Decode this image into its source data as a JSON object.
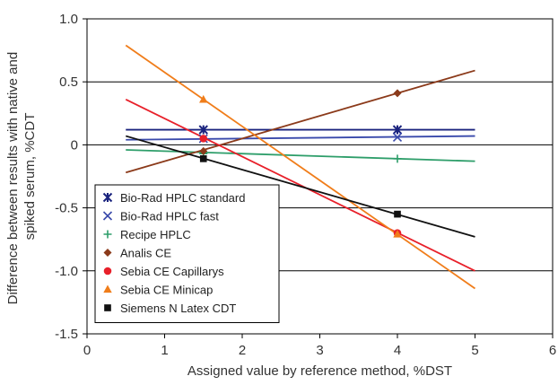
{
  "chart_data": {
    "type": "line",
    "title": "",
    "xlabel": "Assigned value by reference method, %DST",
    "ylabel_lines": [
      "Difference between results with native and",
      "spiked serum, %CDT"
    ],
    "xlim": [
      0,
      6
    ],
    "ylim": [
      -1.5,
      1.0
    ],
    "x_ticks": [
      "0",
      "1",
      "2",
      "3",
      "4",
      "5",
      "6"
    ],
    "y_ticks": [
      "1.0",
      "0.5",
      "0",
      "-0.5",
      "-1.0",
      "-1.5"
    ],
    "x_tick_values": [
      0,
      1,
      2,
      3,
      4,
      5,
      6
    ],
    "y_tick_values": [
      1.0,
      0.5,
      0,
      -0.5,
      -1.0,
      -1.5
    ],
    "gridlines_y": [
      1.0,
      0.5,
      0,
      -0.5,
      -1.0
    ],
    "grid": "horizontal",
    "legend_position": "bottom-left",
    "series": [
      {
        "name": "Bio-Rad HPLC standard",
        "marker": "asterisk",
        "color": "#1a237e",
        "points": [
          [
            1.5,
            0.12
          ],
          [
            4.0,
            0.12
          ]
        ],
        "fit": [
          [
            0.5,
            0.12
          ],
          [
            5.0,
            0.12
          ]
        ]
      },
      {
        "name": "Bio-Rad HPLC fast",
        "marker": "x",
        "color": "#3949ab",
        "points": [
          [
            1.5,
            0.05
          ],
          [
            4.0,
            0.06
          ]
        ],
        "fit": [
          [
            0.5,
            0.04
          ],
          [
            5.0,
            0.07
          ]
        ]
      },
      {
        "name": "Recipe HPLC",
        "marker": "plus",
        "color": "#2e9e6a",
        "points": [
          [
            1.5,
            -0.07
          ],
          [
            4.0,
            -0.11
          ]
        ],
        "fit": [
          [
            0.5,
            -0.04
          ],
          [
            5.0,
            -0.13
          ]
        ]
      },
      {
        "name": "Analis CE",
        "marker": "diamond",
        "color": "#8b3a1a",
        "points": [
          [
            1.5,
            -0.05
          ],
          [
            4.0,
            0.41
          ]
        ],
        "fit": [
          [
            0.5,
            -0.22
          ],
          [
            5.0,
            0.59
          ]
        ]
      },
      {
        "name": "Sebia CE Capillarys",
        "marker": "circle",
        "color": "#e8202a",
        "points": [
          [
            1.5,
            0.05
          ],
          [
            4.0,
            -0.7
          ]
        ],
        "fit": [
          [
            0.5,
            0.36
          ],
          [
            5.0,
            -1.0
          ]
        ]
      },
      {
        "name": "Sebia CE Minicap",
        "marker": "triangle",
        "color": "#f07d1a",
        "points": [
          [
            1.5,
            0.36
          ],
          [
            4.0,
            -0.71
          ]
        ],
        "fit": [
          [
            0.5,
            0.79
          ],
          [
            5.0,
            -1.14
          ]
        ]
      },
      {
        "name": "Siemens N Latex CDT",
        "marker": "square",
        "color": "#111111",
        "points": [
          [
            1.5,
            -0.11
          ],
          [
            4.0,
            -0.55
          ]
        ],
        "fit": [
          [
            0.5,
            0.07
          ],
          [
            5.0,
            -0.73
          ]
        ]
      }
    ]
  }
}
